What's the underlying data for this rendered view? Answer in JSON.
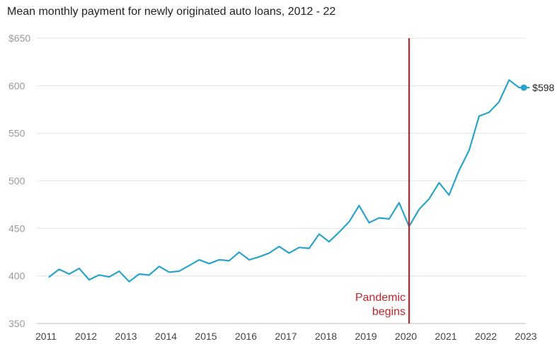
{
  "chart_data": {
    "type": "line",
    "title": "Mean monthly payment for newly originated auto loans, 2012 - 22",
    "xlabel": "",
    "ylabel": "",
    "ylim": [
      350,
      650
    ],
    "xlim": [
      2011,
      2023
    ],
    "grid": true,
    "y_ticks": [
      "$650",
      "600",
      "550",
      "500",
      "450",
      "400",
      "350"
    ],
    "y_tick_values": [
      650,
      600,
      550,
      500,
      450,
      400,
      350
    ],
    "x_ticks": [
      "2011",
      "2012",
      "2013",
      "2014",
      "2015",
      "2016",
      "2017",
      "2018",
      "2019",
      "2020",
      "2021",
      "2022",
      "2023"
    ],
    "x_tick_values": [
      2011,
      2012,
      2013,
      2014,
      2015,
      2016,
      2017,
      2018,
      2019,
      2020,
      2021,
      2022,
      2023
    ],
    "series": [
      {
        "color": "#2aa3cc",
        "x": [
          2011.08,
          2011.33,
          2011.58,
          2011.83,
          2012.08,
          2012.33,
          2012.58,
          2012.83,
          2013.08,
          2013.33,
          2013.58,
          2013.83,
          2014.08,
          2014.33,
          2014.58,
          2014.83,
          2015.08,
          2015.33,
          2015.58,
          2015.83,
          2016.08,
          2016.33,
          2016.58,
          2016.83,
          2017.08,
          2017.33,
          2017.58,
          2017.83,
          2018.08,
          2018.33,
          2018.58,
          2018.83,
          2019.08,
          2019.33,
          2019.58,
          2019.83,
          2020.08,
          2020.33,
          2020.58,
          2020.83,
          2021.08,
          2021.33,
          2021.58,
          2021.83,
          2022.08,
          2022.33,
          2022.58,
          2022.83,
          2023.08
        ],
        "y": [
          399,
          407,
          402,
          408,
          396,
          401,
          399,
          405,
          394,
          402,
          401,
          410,
          404,
          405,
          411,
          417,
          413,
          417,
          416,
          425,
          417,
          420,
          424,
          431,
          424,
          430,
          429,
          444,
          436,
          446,
          457,
          474,
          456,
          461,
          460,
          477,
          452,
          470,
          481,
          498,
          485,
          511,
          532,
          568,
          572,
          583,
          606,
          598,
          598
        ]
      }
    ],
    "end_point": {
      "x": 2022.95,
      "y": 598,
      "label": "$598"
    },
    "annotation": {
      "x": 2020.08,
      "color": "#c0272d",
      "lines": [
        "Pandemic",
        "begins"
      ]
    }
  }
}
